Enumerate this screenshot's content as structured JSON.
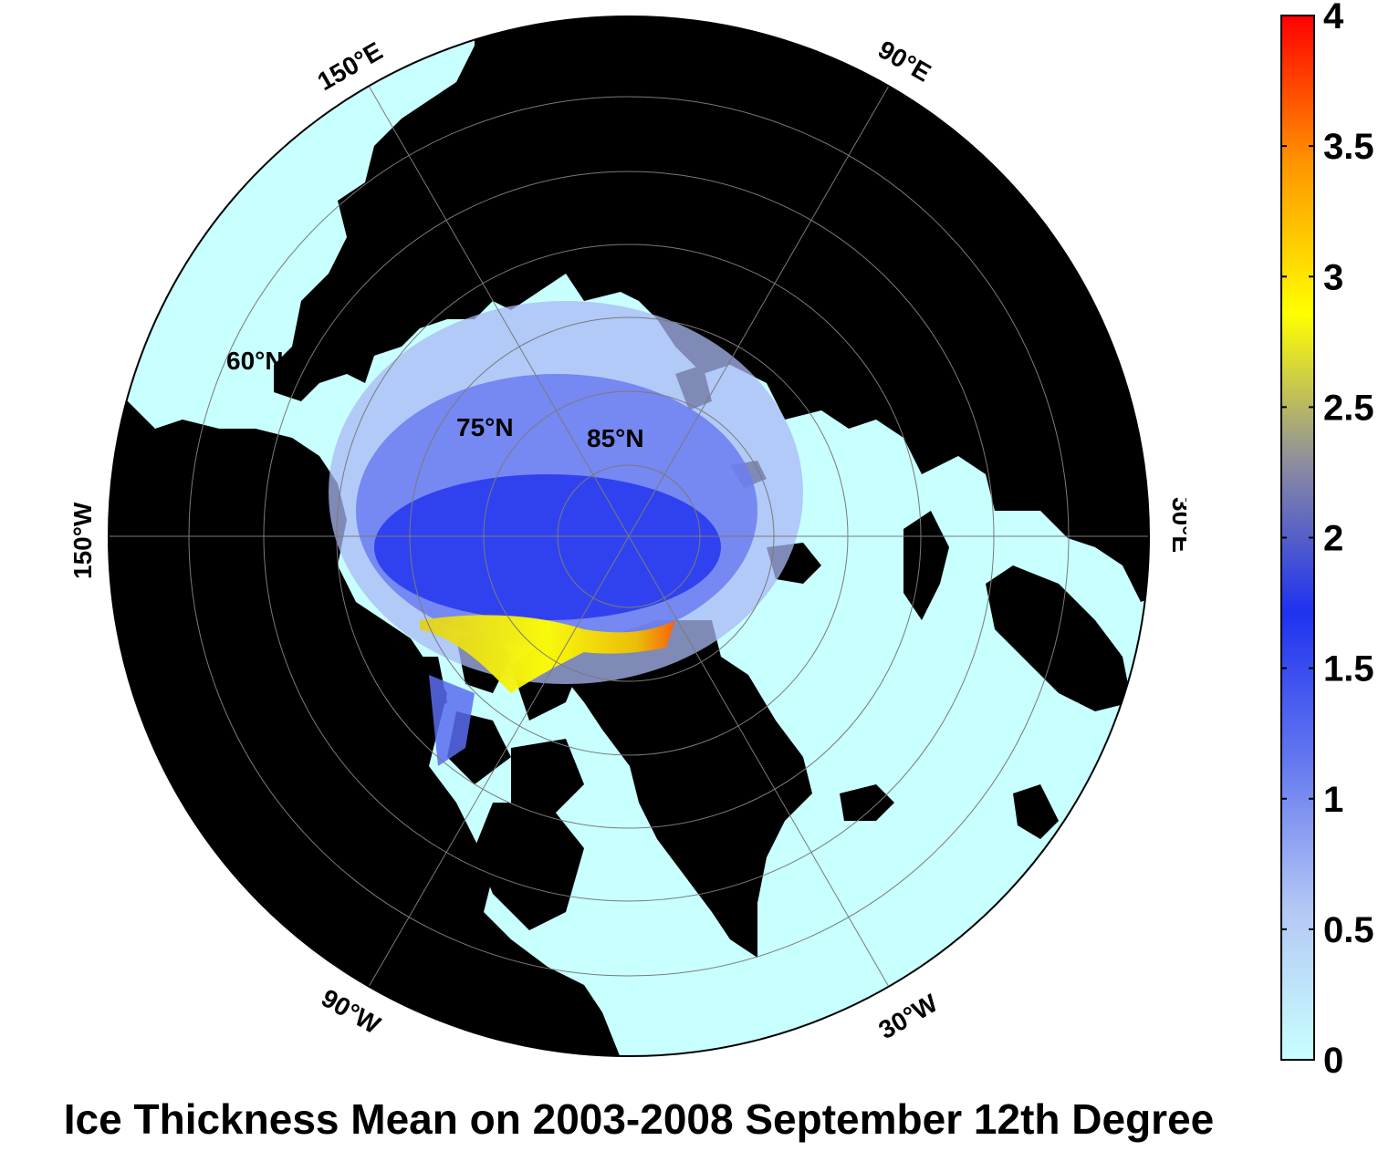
{
  "title": "Ice Thickness Mean on 2003-2008 September 12th Degree",
  "map": {
    "projection": "north-polar-stereographic",
    "land_color": "#000000",
    "ocean_color": "#c8ffff",
    "latitude_labels": [
      "60°N",
      "75°N",
      "85°N"
    ],
    "longitude_labels": [
      "150°E",
      "90°E",
      "30°E",
      "30°W",
      "90°W",
      "150°W"
    ]
  },
  "colorbar": {
    "min": 0,
    "max": 4,
    "ticks": [
      "0",
      "0.5",
      "1",
      "1.5",
      "2",
      "2.5",
      "3",
      "3.5",
      "4"
    ],
    "colors": [
      "#c8ffff",
      "#b4c8f5",
      "#6478f0",
      "#1e32f0",
      "#8c8ca0",
      "#ffff00",
      "#ff9600",
      "#ff0000"
    ]
  }
}
